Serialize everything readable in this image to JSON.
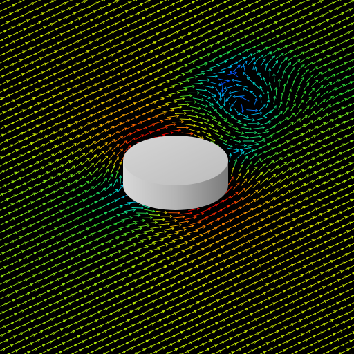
{
  "scene": {
    "background_color": "#000000",
    "obstacle_color": "#c4c4c4",
    "colormap": [
      "#0a2dff",
      "#00b4ff",
      "#00e0c0",
      "#30e030",
      "#c8f000",
      "#ffb000",
      "#ff3000",
      "#e00000"
    ],
    "icons": [
      "velocity-arrow-icon",
      "cylinder-obstacle-icon"
    ]
  }
}
